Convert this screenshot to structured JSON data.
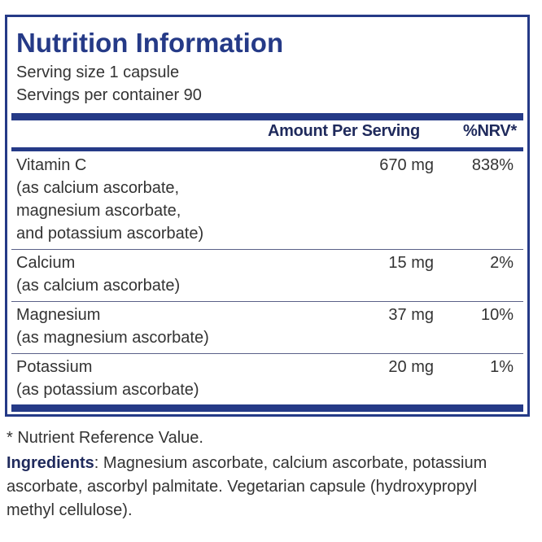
{
  "title": "Nutrition Information",
  "serving_size": "Serving size  1 capsule",
  "servings_per_container": "Servings per container  90",
  "headers": {
    "amount": "Amount Per Serving",
    "nrv": "%NRV*"
  },
  "rows": [
    {
      "name": "Vitamin C",
      "sub": "(as calcium ascorbate,\nmagnesium ascorbate,\nand potassium ascorbate)",
      "amount": "670 mg",
      "nrv": "838%"
    },
    {
      "name": "Calcium",
      "sub": "(as calcium ascorbate)",
      "amount": "15 mg",
      "nrv": "2%"
    },
    {
      "name": "Magnesium",
      "sub": "(as magnesium ascorbate)",
      "amount": "37 mg",
      "nrv": "10%"
    },
    {
      "name": "Potassium",
      "sub": "(as potassium ascorbate)",
      "amount": "20 mg",
      "nrv": "1%"
    }
  ],
  "footnote": "* Nutrient Reference Value.",
  "ingredients_label": "Ingredients",
  "ingredients_text": ": Magnesium ascorbate, calcium ascorbate, potassium ascorbate, ascorbyl palmitate. Vegetarian capsule (hydroxypropyl methyl cellulose).",
  "colors": {
    "accent": "#253a87",
    "text": "#333333"
  }
}
